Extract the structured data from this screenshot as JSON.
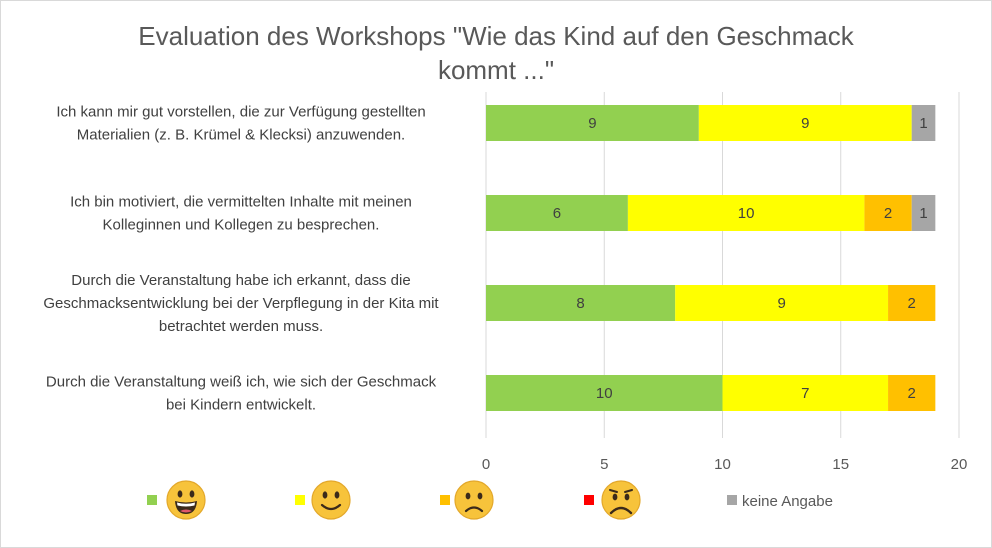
{
  "chart_data": {
    "type": "bar",
    "orientation": "horizontal",
    "stacked": true,
    "title": "Evaluation des Workshops \"Wie das Kind auf den Geschmack kommt ...\"",
    "title_lines": [
      "Evaluation des Workshops \"Wie das Kind auf den Geschmack",
      "kommt ...\""
    ],
    "categories": [
      "Ich kann mir gut vorstellen, die zur Verfügung gestellten Materialien (z. B. Krümel & Klecksi) anzuwenden.",
      "Ich bin motiviert, die vermittelten Inhalte mit meinen Kolleginnen und Kollegen zu besprechen.",
      "Durch die Veranstaltung habe ich erkannt, dass die Geschmacksentwicklung bei der Verpflegung in der Kita mit betrachtet werden muss.",
      "Durch die Veranstaltung weiß ich, wie sich der Geschmack bei Kindern entwickelt."
    ],
    "category_lines": [
      [
        "Ich kann mir gut vorstellen, die zur Verfügung gestellten",
        "Materialien (z. B. Krümel & Klecksi) anzuwenden."
      ],
      [
        "Ich bin motiviert, die vermittelten Inhalte mit meinen",
        "Kolleginnen und Kollegen zu besprechen."
      ],
      [
        "Durch die Veranstaltung habe ich erkannt, dass die",
        "Geschmacksentwicklung bei der Verpflegung in der Kita mit",
        "betrachtet werden muss."
      ],
      [
        "Durch die Veranstaltung weiß ich, wie sich der Geschmack",
        "bei Kindern entwickelt."
      ]
    ],
    "series": [
      {
        "legend_icon": "very-happy-face-icon",
        "color": "#92D050",
        "values": [
          9,
          6,
          8,
          10
        ]
      },
      {
        "legend_icon": "smiling-face-icon",
        "color": "#FFFF00",
        "values": [
          9,
          10,
          9,
          7
        ]
      },
      {
        "legend_icon": "frowning-face-icon",
        "color": "#FFC000",
        "values": [
          0,
          2,
          2,
          2
        ]
      },
      {
        "legend_icon": "sad-face-icon",
        "color": "#FF0000",
        "values": [
          0,
          0,
          0,
          0
        ]
      },
      {
        "name": "keine Angabe",
        "color": "#A6A6A6",
        "values": [
          1,
          1,
          0,
          0
        ]
      }
    ],
    "xlim": [
      0,
      20
    ],
    "xticks": [
      0,
      5,
      10,
      15,
      20
    ],
    "grid": true,
    "legend_position": "bottom"
  }
}
